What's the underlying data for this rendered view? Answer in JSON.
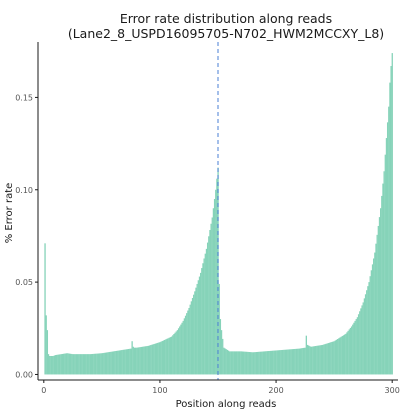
{
  "chart_data": {
    "type": "bar",
    "title_line1": "Error rate distribution along reads",
    "title_line2": "(Lane2_8_USPD16095705-N702_HWM2MCCXY_L8)",
    "xlabel": "Position along reads",
    "ylabel": "% Error rate",
    "xlim": [
      -5,
      305
    ],
    "ylim": [
      -0.003,
      0.18
    ],
    "x_ticks": [
      0,
      100,
      200,
      300
    ],
    "x_tick_labels": [
      "0",
      "100",
      "200",
      "300"
    ],
    "y_ticks": [
      0.0,
      0.05,
      0.1,
      0.15
    ],
    "y_tick_labels": [
      "0.00",
      "0.05",
      "0.10",
      "0.15"
    ],
    "divider_x": 150,
    "grid": false,
    "colors": {
      "bars": "#86d3b9",
      "divider": "#4a7fd4",
      "axis": "#1a1a1a"
    },
    "series": [
      {
        "x": [
          1,
          2,
          3,
          4,
          5,
          6,
          8,
          10,
          15,
          20,
          25,
          30,
          40,
          50,
          60,
          70,
          75,
          76,
          77,
          78,
          80,
          90,
          100,
          110,
          115,
          120,
          125,
          130,
          135,
          140,
          145,
          148,
          150
        ],
        "values": [
          0.071,
          0.032,
          0.024,
          0.011,
          0.01,
          0.01,
          0.01,
          0.0105,
          0.011,
          0.0115,
          0.011,
          0.011,
          0.011,
          0.0115,
          0.0125,
          0.0135,
          0.014,
          0.018,
          0.015,
          0.0145,
          0.0145,
          0.0155,
          0.0175,
          0.0205,
          0.024,
          0.029,
          0.036,
          0.045,
          0.055,
          0.068,
          0.085,
          0.1,
          0.112
        ]
      },
      {
        "x": [
          151,
          152,
          153,
          155,
          160,
          170,
          180,
          190,
          200,
          210,
          220,
          225,
          226,
          227,
          230,
          240,
          250,
          260,
          265,
          270,
          275,
          280,
          285,
          290,
          293,
          295,
          297,
          298,
          299,
          300
        ],
        "values": [
          0.049,
          0.03,
          0.024,
          0.0145,
          0.0125,
          0.0125,
          0.012,
          0.0125,
          0.013,
          0.0135,
          0.014,
          0.0145,
          0.021,
          0.016,
          0.015,
          0.016,
          0.018,
          0.022,
          0.026,
          0.031,
          0.039,
          0.05,
          0.066,
          0.09,
          0.11,
          0.128,
          0.145,
          0.158,
          0.167,
          0.174
        ]
      }
    ]
  }
}
